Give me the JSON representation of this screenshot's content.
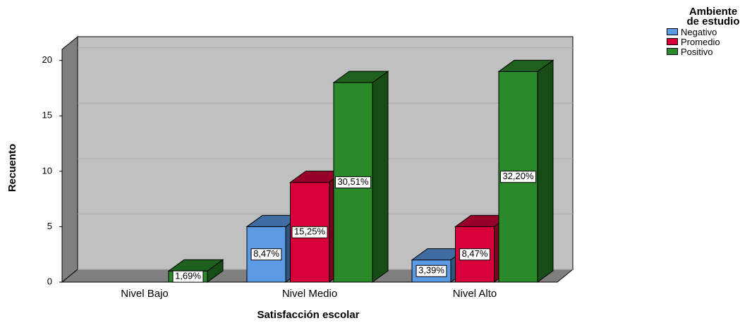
{
  "chart_data": {
    "type": "bar3d",
    "xlabel": "Satisfacción escolar",
    "ylabel": "Recuento",
    "legend_title": "Ambiente de estudio",
    "legend_position": "upper right",
    "categories": [
      "Nivel Bajo",
      "Nivel Medio",
      "Nivel Alto"
    ],
    "series": [
      {
        "name": "Negativo",
        "color": "#5b9be6",
        "values": [
          0,
          5,
          2
        ],
        "value_labels": [
          null,
          "8,47%",
          "3,39%"
        ]
      },
      {
        "name": "Promedio",
        "color": "#d8003a",
        "values": [
          0,
          9,
          5
        ],
        "value_labels": [
          null,
          "15,25%",
          "8,47%"
        ]
      },
      {
        "name": "Positivo",
        "color": "#2a8a2a",
        "values": [
          1,
          18,
          19
        ],
        "value_labels": [
          "1,69%",
          "30,51%",
          "32,20%"
        ]
      }
    ],
    "ylim": [
      0,
      21
    ],
    "yticks": [
      0,
      5,
      10,
      15,
      20
    ],
    "grid": true
  }
}
